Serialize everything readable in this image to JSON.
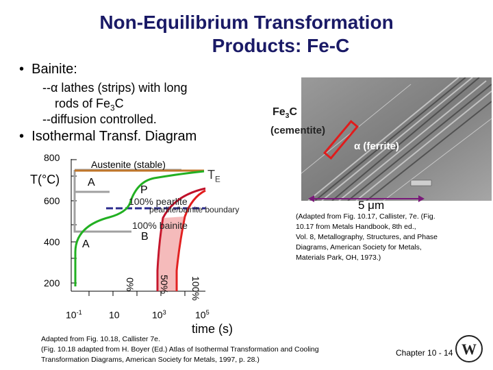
{
  "slide": {
    "title_line1": "Non-Equilibrium Transformation",
    "title_line2": "Products:  Fe-C",
    "bullet1": "Bainite:",
    "sub1a_prefix": "--",
    "sub1a_alpha": "α",
    "sub1a_rest": " lathes (strips) with long",
    "sub1b_pre": "rods of Fe",
    "sub1b_sub": "3",
    "sub1b_post": "C",
    "sub1c": "--diffusion controlled.",
    "bullet2": "Isothermal Transf. Diagram",
    "footer": "Chapter 10 - 14"
  },
  "micrograph": {
    "fe3c_pre": "Fe",
    "fe3c_sub": "3",
    "fe3c_post": "C",
    "cementite": "(cementite)",
    "alpha": "α",
    "ferrite": " (ferrite)",
    "scale": "5 μm",
    "caption_1": "(Adapted from Fig. 10.17, Callister, 7e. (Fig.",
    "caption_2": "10.17 from Metals Handbook, 8th ed.,",
    "caption_3": "Vol. 8, Metallography, Structures, and Phase",
    "caption_4": "Diagrams, American Society for Metals,",
    "caption_5": "Materials Park, OH, 1973.)"
  },
  "diagram": {
    "y_title": "T(°C)",
    "y_ticks": [
      "800",
      "600",
      "400",
      "200"
    ],
    "x_ticks": [
      "10",
      "10",
      "10",
      "10"
    ],
    "x_exps": [
      "-1",
      "",
      "3",
      "5"
    ],
    "x_title": "time (s)",
    "austenite": "Austenite (stable)",
    "te_main": "T",
    "te_sub": "E",
    "a_upper": "A",
    "p": "P",
    "pearlite100": "100% pearlite",
    "boundary": "pearlite/bainite boundary",
    "bainite100": "100% bainite",
    "b": "B",
    "a_lower": "A",
    "pct0": "0%",
    "pct50": "50%",
    "pct100": "100%",
    "colors": {
      "te_line": "#c0762a",
      "start_curve": "#22b022",
      "mid_curve": "#c0102a",
      "finish_curve": "#e21c1c",
      "boundary": "#2a2a8c",
      "box": "#a0a0a0"
    }
  },
  "credits": {
    "line1": "Adapted from Fig. 10.18, Callister 7e.",
    "line2": "(Fig. 10.18 adapted from H. Boyer (Ed.) Atlas of Isothermal Transformation and Cooling",
    "line3": "Transformation Diagrams, American Society for Metals, 1997, p. 28.)"
  },
  "logo": {
    "letters": "W"
  }
}
